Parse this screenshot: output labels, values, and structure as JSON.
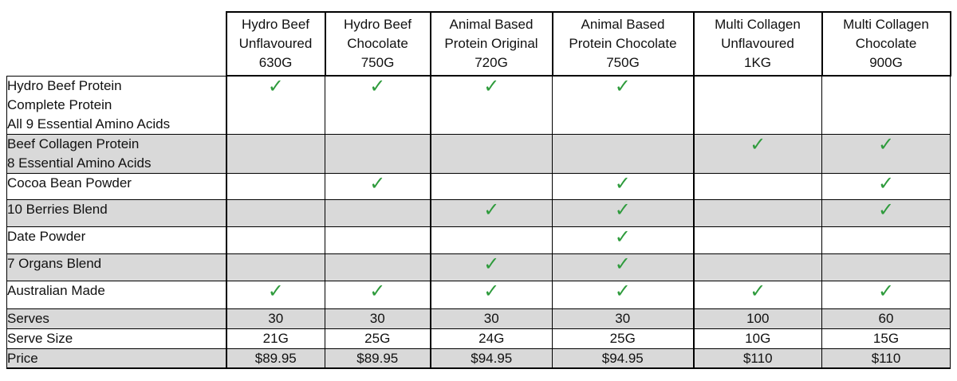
{
  "columns": [
    {
      "line1": "Hydro Beef",
      "line2": "Unflavoured",
      "line3": "630G"
    },
    {
      "line1": "Hydro Beef",
      "line2": "Chocolate",
      "line3": "750G"
    },
    {
      "line1": "Animal Based",
      "line2": "Protein Original",
      "line3": "720G"
    },
    {
      "line1": "Animal Based",
      "line2": "Protein Chocolate",
      "line3": "750G"
    },
    {
      "line1": "Multi Collagen",
      "line2": "Unflavoured",
      "line3": "1KG"
    },
    {
      "line1": "Multi Collagen",
      "line2": "Chocolate",
      "line3": "900G"
    }
  ],
  "check_symbol": "✓",
  "check_color": "#2e9b3c",
  "shade_color": "#d9d9d9",
  "feature_rows": [
    {
      "label_lines": [
        "Hydro Beef Protein",
        "Complete Protein",
        "All 9 Essential Amino Acids"
      ],
      "checks": [
        true,
        true,
        true,
        true,
        false,
        false
      ],
      "shaded": false
    },
    {
      "label_lines": [
        "Beef Collagen Protein",
        "8 Essential Amino Acids"
      ],
      "checks": [
        false,
        false,
        false,
        false,
        true,
        true
      ],
      "shaded": true
    },
    {
      "label_lines": [
        "Cocoa Bean Powder"
      ],
      "checks": [
        false,
        true,
        false,
        true,
        false,
        true
      ],
      "shaded": false
    },
    {
      "label_lines": [
        "10 Berries Blend"
      ],
      "checks": [
        false,
        false,
        true,
        true,
        false,
        true
      ],
      "shaded": true
    },
    {
      "label_lines": [
        "Date Powder"
      ],
      "checks": [
        false,
        false,
        false,
        true,
        false,
        false
      ],
      "shaded": false
    },
    {
      "label_lines": [
        "7 Organs Blend"
      ],
      "checks": [
        false,
        false,
        true,
        true,
        false,
        false
      ],
      "shaded": true
    },
    {
      "label_lines": [
        "Australian Made"
      ],
      "checks": [
        true,
        true,
        true,
        true,
        true,
        true
      ],
      "shaded": false
    }
  ],
  "value_rows": [
    {
      "label": "Serves",
      "values": [
        "30",
        "30",
        "30",
        "30",
        "100",
        "60"
      ],
      "shaded": true
    },
    {
      "label": "Serve Size",
      "values": [
        "21G",
        "25G",
        "24G",
        "25G",
        "10G",
        "15G"
      ],
      "shaded": false
    },
    {
      "label": "Price",
      "values": [
        "$89.95",
        "$89.95",
        "$94.95",
        "$94.95",
        "$110",
        "$110"
      ],
      "shaded": true
    }
  ]
}
